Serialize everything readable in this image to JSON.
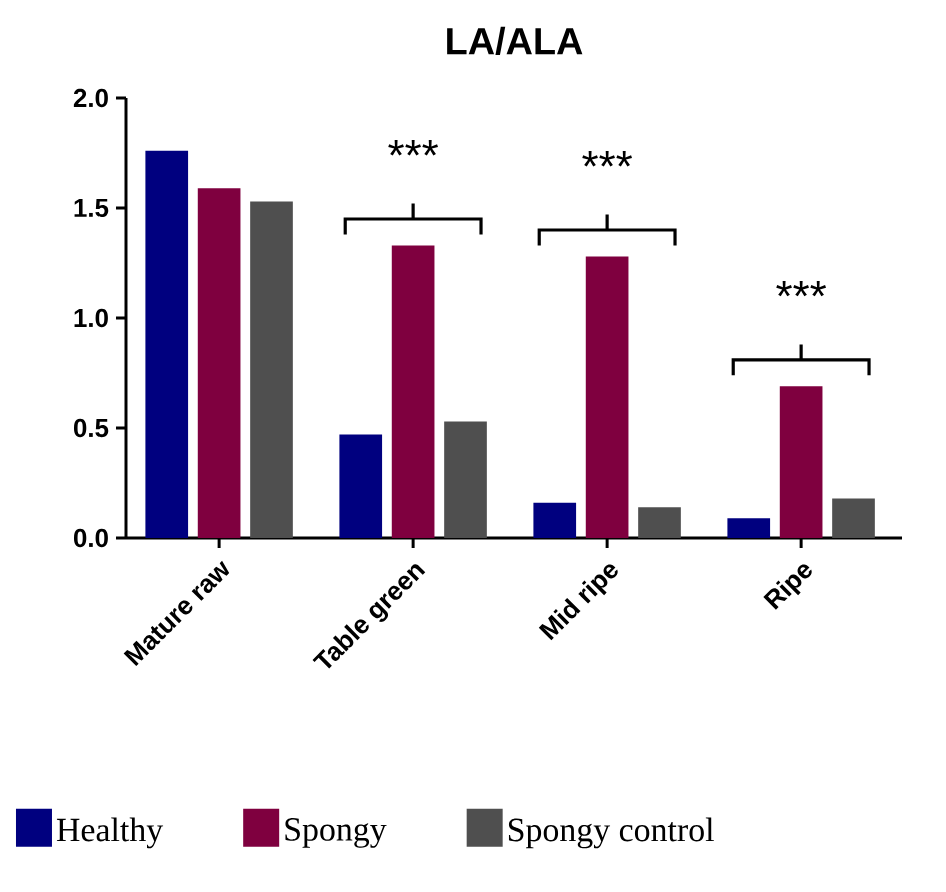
{
  "chart_data": {
    "type": "bar",
    "title": "LA/ALA",
    "categories": [
      "Mature raw",
      "Table green",
      "Mid ripe",
      "Ripe"
    ],
    "series": [
      {
        "name": "Healthy",
        "color": "#00007f",
        "values": [
          1.76,
          0.47,
          0.16,
          0.09
        ]
      },
      {
        "name": "Spongy",
        "color": "#7f003f",
        "values": [
          1.59,
          1.33,
          1.28,
          0.69
        ]
      },
      {
        "name": "Spongy control",
        "color": "#4f4f4f",
        "values": [
          1.53,
          0.53,
          0.14,
          0.18
        ]
      }
    ],
    "ylim": [
      0,
      2
    ],
    "yticks": [
      {
        "value": 0,
        "label": "0.0"
      },
      0.5,
      {
        "value": 1,
        "label": "1.0"
      },
      1.5,
      {
        "value": 2,
        "label": "2.0"
      }
    ],
    "grid": false,
    "legend": "bottom",
    "annotations": [
      "***",
      "***",
      "***"
    ]
  }
}
